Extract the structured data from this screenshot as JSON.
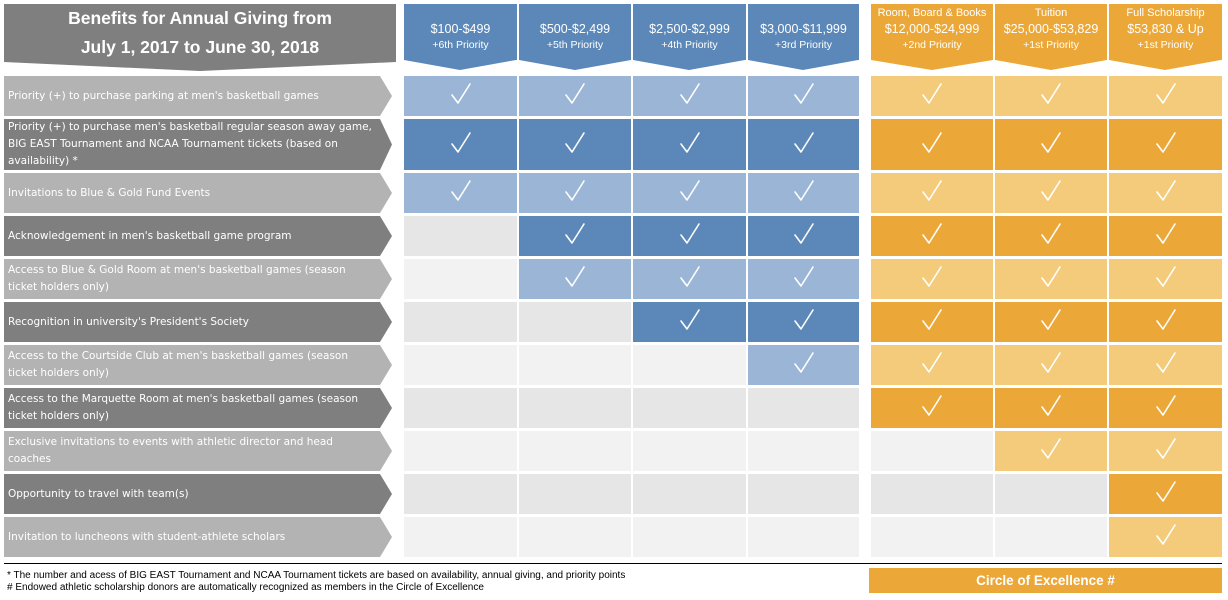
{
  "title": {
    "line1": "Benefits for Annual Giving from",
    "line2": "July 1, 2017 to June 30, 2018"
  },
  "levels": [
    {
      "prefix": "",
      "amount": "$100-$499",
      "priority": "+6th Priority",
      "color": "#5b88b8"
    },
    {
      "prefix": "",
      "amount": "$500-$2,499",
      "priority": "+5th Priority",
      "color": "#5b88b8"
    },
    {
      "prefix": "",
      "amount": "$2,500-$2,999",
      "priority": "+4th Priority",
      "color": "#5b88b8"
    },
    {
      "prefix": "",
      "amount": "$3,000-$11,999",
      "priority": "+3rd Priority",
      "color": "#5b88b8"
    },
    {
      "prefix": "Room, Board & Books",
      "amount": "$12,000-$24,999",
      "priority": "+2nd Priority",
      "color": "#eba838"
    },
    {
      "prefix": "Tuition",
      "amount": "$25,000-$53,829",
      "priority": "+1st Priority",
      "color": "#eba838"
    },
    {
      "prefix": "Full Scholarship",
      "amount": "$53,830 & Up",
      "priority": "+1st Priority",
      "color": "#eba838"
    }
  ],
  "rows": [
    {
      "label": "Priority (+) to purchase parking at men's basketball games",
      "checks": [
        1,
        1,
        1,
        1,
        1,
        1,
        1
      ]
    },
    {
      "label": "Priority (+) to purchase men's basketball regular season away game, BIG EAST Tournament and NCAA Tournament tickets (based on availability) *",
      "checks": [
        1,
        1,
        1,
        1,
        1,
        1,
        1
      ]
    },
    {
      "label": "Invitations to Blue & Gold Fund Events",
      "checks": [
        1,
        1,
        1,
        1,
        1,
        1,
        1
      ]
    },
    {
      "label": "Acknowledgement in men's basketball game program",
      "checks": [
        0,
        1,
        1,
        1,
        1,
        1,
        1
      ]
    },
    {
      "label": "Access to Blue & Gold Room at men's basketball games (season ticket holders only)",
      "checks": [
        0,
        1,
        1,
        1,
        1,
        1,
        1
      ]
    },
    {
      "label": "Recognition in university's President's Society",
      "checks": [
        0,
        0,
        1,
        1,
        1,
        1,
        1
      ]
    },
    {
      "label": "Access to the Courtside Club at men's basketball games (season ticket holders only)",
      "checks": [
        0,
        0,
        0,
        1,
        1,
        1,
        1
      ]
    },
    {
      "label": "Access to the Marquette Room at men's basketball games (season ticket holders only)",
      "checks": [
        0,
        0,
        0,
        0,
        1,
        1,
        1
      ]
    },
    {
      "label": "Exclusive invitations to events with athletic director and head coaches",
      "checks": [
        0,
        0,
        0,
        0,
        0,
        1,
        1
      ]
    },
    {
      "label": "Opportunity to travel with team(s)",
      "checks": [
        0,
        0,
        0,
        0,
        0,
        0,
        1
      ]
    },
    {
      "label": "Invitation to luncheons with student-athlete scholars",
      "checks": [
        0,
        0,
        0,
        0,
        0,
        0,
        1
      ]
    }
  ],
  "colors": {
    "blue_dark": "#5b88b8",
    "blue_light": "#9ab5d6",
    "orange_dark": "#eba838",
    "orange_light": "#f3cb7a",
    "empty_gray": "#e6e6e6",
    "empty_white": "#f2f2f2",
    "label_light": "#b3b3b3",
    "label_dark": "#7f7f7f"
  },
  "check_icon": "checkmark-icon",
  "footer": {
    "note1": "* The number and acess of BIG EAST Tournament and NCAA Tournament tickets are based on availability, annual giving, and priority points",
    "note2": "# Endowed athletic scholarship donors are automatically recognized as members in the Circle of Excellence",
    "circle": "Circle of Excellence #"
  }
}
